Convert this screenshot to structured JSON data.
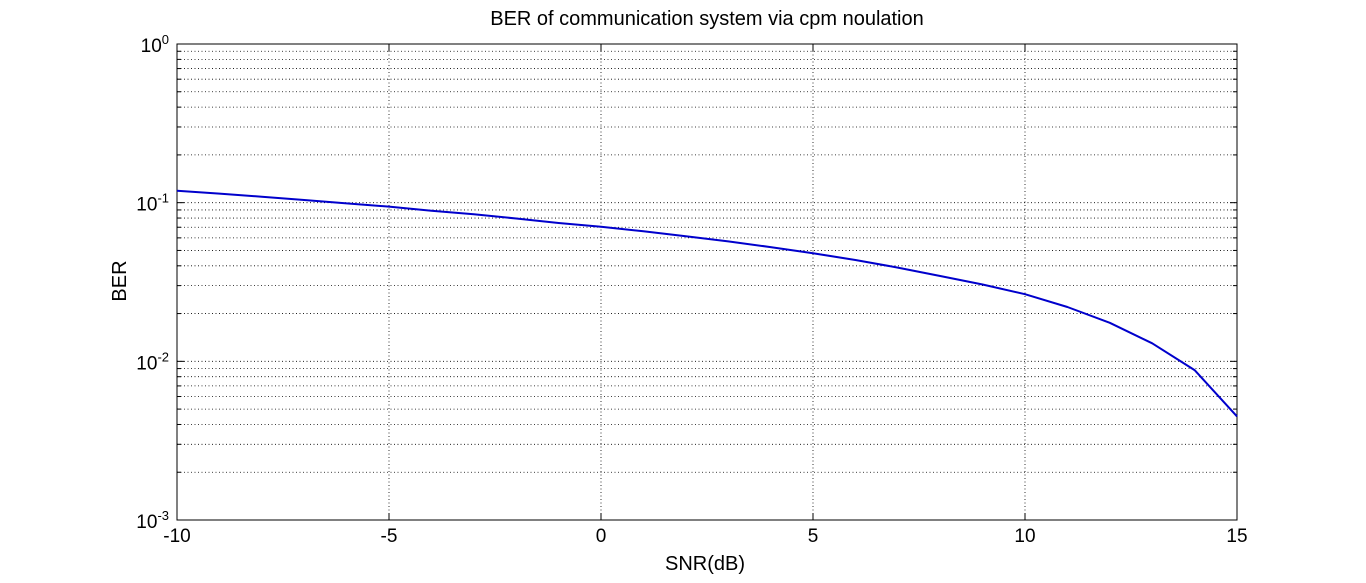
{
  "chart_data": {
    "type": "line",
    "title": "BER of communication system via cpm noulation",
    "xlabel": "SNR(dB)",
    "ylabel": "BER",
    "xlim": [
      -10,
      15
    ],
    "ylim": [
      0.001,
      1
    ],
    "yscale": "log",
    "grid": true,
    "legend": "none",
    "x_ticks": [
      {
        "value": -10,
        "label": "-10"
      },
      {
        "value": -5,
        "label": "-5"
      },
      {
        "value": 0,
        "label": "0"
      },
      {
        "value": 5,
        "label": "5"
      },
      {
        "value": 10,
        "label": "10"
      },
      {
        "value": 15,
        "label": "15"
      }
    ],
    "y_ticks": [
      {
        "value": 0.001,
        "base": "10",
        "exp": "-3"
      },
      {
        "value": 0.01,
        "base": "10",
        "exp": "-2"
      },
      {
        "value": 0.1,
        "base": "10",
        "exp": "-1"
      },
      {
        "value": 1,
        "base": "10",
        "exp": "0"
      }
    ],
    "series": [
      {
        "color": "#0000cc",
        "x": [
          -10,
          -9,
          -8,
          -7,
          -6,
          -5,
          -4,
          -3,
          -2,
          -1,
          0,
          1,
          2,
          3,
          4,
          5,
          6,
          7,
          8,
          9,
          10,
          11,
          12,
          13,
          14,
          15
        ],
        "y": [
          0.119,
          0.114,
          0.109,
          0.104,
          0.099,
          0.0945,
          0.089,
          0.0845,
          0.0795,
          0.0745,
          0.0705,
          0.066,
          0.0615,
          0.057,
          0.0525,
          0.048,
          0.0435,
          0.039,
          0.0345,
          0.0305,
          0.0265,
          0.022,
          0.0175,
          0.013,
          0.0088,
          0.0045
        ]
      }
    ]
  }
}
